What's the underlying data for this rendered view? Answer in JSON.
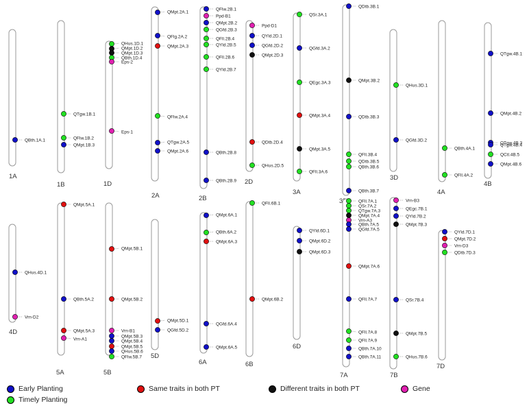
{
  "colors": {
    "early": "#1010c8",
    "timely": "#22e022",
    "same": "#e01010",
    "different": "#101010",
    "gene": "#e020b0"
  },
  "legend": [
    {
      "label": "Early Planting",
      "cat": "early"
    },
    {
      "label": "Timely Planting",
      "cat": "timely"
    },
    {
      "label": "Same traits in both PT",
      "cat": "same"
    },
    {
      "label": "Different traits in both PT",
      "cat": "different"
    },
    {
      "label": "Gene",
      "cat": "gene"
    }
  ],
  "chromosomes": [
    {
      "name": "1A",
      "markers": [
        {
          "label": "QBth.1A.1",
          "cat": "early"
        }
      ]
    },
    {
      "name": "1B",
      "markers": [
        {
          "label": "QTgw.1B.1",
          "cat": "timely"
        },
        {
          "label": "QFlw.1B.2",
          "cat": "timely"
        },
        {
          "label": "QMpt.1B.3",
          "cat": "early"
        }
      ]
    },
    {
      "name": "1D",
      "markers": [
        {
          "label": "QHus.1D.1",
          "cat": "timely"
        },
        {
          "label": "QMpt.1D.2",
          "cat": "different"
        },
        {
          "label": "QMpt.1D.3",
          "cat": "different"
        },
        {
          "label": "QBth.1D.4",
          "cat": "timely"
        },
        {
          "label": "Eps-2",
          "cat": "gene"
        },
        {
          "label": "Eps-1",
          "cat": "gene"
        }
      ]
    },
    {
      "name": "2A",
      "markers": [
        {
          "label": "QMpt.2A.1",
          "cat": "early"
        },
        {
          "label": "QFlg.2A.2",
          "cat": "early"
        },
        {
          "label": "QMpt.2A.3",
          "cat": "same"
        },
        {
          "label": "QFlw.2A.4",
          "cat": "timely"
        },
        {
          "label": "QTgw.2A.5",
          "cat": "early"
        },
        {
          "label": "QMpt.2A.6",
          "cat": "early"
        }
      ]
    },
    {
      "name": "2B",
      "markers": [
        {
          "label": "QFlw.2B.1",
          "cat": "early"
        },
        {
          "label": "Ppd-B1",
          "cat": "gene"
        },
        {
          "label": "QMpt.2B.2",
          "cat": "early"
        },
        {
          "label": "QGfd.2B.3",
          "cat": "timely"
        },
        {
          "label": "QFll.2B.4",
          "cat": "timely"
        },
        {
          "label": "QYld.2B.5",
          "cat": "timely"
        },
        {
          "label": "QFll.2B.6",
          "cat": "timely"
        },
        {
          "label": "QYld.2B.7",
          "cat": "timely"
        },
        {
          "label": "QBth.2B.8",
          "cat": "early"
        },
        {
          "label": "QBth.2B.9",
          "cat": "early"
        }
      ]
    },
    {
      "name": "2D",
      "markers": [
        {
          "label": "Ppd-D1",
          "cat": "gene"
        },
        {
          "label": "QYld.2D.1",
          "cat": "early"
        },
        {
          "label": "QGfd.2D.2",
          "cat": "early"
        },
        {
          "label": "QMpt.2D.3",
          "cat": "different"
        },
        {
          "label": "QDtb.2D.4",
          "cat": "same"
        },
        {
          "label": "QHus.2D.5",
          "cat": "timely"
        }
      ]
    },
    {
      "name": "3A",
      "markers": [
        {
          "label": "QSr.3A.1",
          "cat": "timely"
        },
        {
          "label": "QGfd.3A.2",
          "cat": "early"
        },
        {
          "label": "QEgc.3A.3",
          "cat": "timely"
        },
        {
          "label": "QMpt.3A.4",
          "cat": "same"
        },
        {
          "label": "QMpt.3A.5",
          "cat": "different"
        },
        {
          "label": "QFll.3A.6",
          "cat": "timely"
        }
      ]
    },
    {
      "name": "3B",
      "markers": [
        {
          "label": "QDtb.3B.1",
          "cat": "early"
        },
        {
          "label": "QMpt.3B.2",
          "cat": "different"
        },
        {
          "label": "QDtb.3B.3",
          "cat": "early"
        },
        {
          "label": "QFll.3B.4",
          "cat": "timely"
        },
        {
          "label": "QDtb.3B.5",
          "cat": "timely"
        },
        {
          "label": "QBth.3B.6",
          "cat": "timely"
        },
        {
          "label": "QBth.3B.7",
          "cat": "early"
        }
      ]
    },
    {
      "name": "3D",
      "markers": [
        {
          "label": "QHus.3D.1",
          "cat": "timely"
        },
        {
          "label": "QGfd.3D.2",
          "cat": "early"
        }
      ]
    },
    {
      "name": "4A",
      "markers": [
        {
          "label": "QBth.4A.1",
          "cat": "timely"
        },
        {
          "label": "QFll.4A.2",
          "cat": "timely"
        }
      ]
    },
    {
      "name": "4B",
      "markers": [
        {
          "label": "QTgw.4B.1",
          "cat": "early"
        },
        {
          "label": "QMpt.4B.2",
          "cat": "early"
        },
        {
          "label": "QTgw.4B.3",
          "cat": "early"
        },
        {
          "label": "QTgw.4B.4",
          "cat": "early"
        },
        {
          "label": "QCtl.4B.5",
          "cat": "timely"
        },
        {
          "label": "QMpt.4B.6",
          "cat": "early"
        }
      ]
    },
    {
      "name": "4D",
      "markers": [
        {
          "label": "QHus.4D.1",
          "cat": "early"
        },
        {
          "label": "Vrn-D2",
          "cat": "gene"
        }
      ]
    },
    {
      "name": "5A",
      "markers": [
        {
          "label": "QMpt.5A.1",
          "cat": "same"
        },
        {
          "label": "QBth.5A.2",
          "cat": "early"
        },
        {
          "label": "QMpt.5A.3",
          "cat": "same"
        },
        {
          "label": "Vrn-A1",
          "cat": "gene"
        }
      ]
    },
    {
      "name": "5B",
      "markers": [
        {
          "label": "QMpt.5B.1",
          "cat": "same"
        },
        {
          "label": "QMpt.5B.2",
          "cat": "same"
        },
        {
          "label": "Vrn-B1",
          "cat": "gene"
        },
        {
          "label": "QMpt.5B.3",
          "cat": "early"
        },
        {
          "label": "QMpt.5B.4",
          "cat": "early"
        },
        {
          "label": "QMpt.5B.5",
          "cat": "same"
        },
        {
          "label": "QHus.5B.6",
          "cat": "early"
        },
        {
          "label": "QFlw.5B.7",
          "cat": "timely"
        }
      ]
    },
    {
      "name": "5D",
      "markers": [
        {
          "label": "QMpt.5D.1",
          "cat": "same"
        },
        {
          "label": "QGfd.5D.2",
          "cat": "early"
        }
      ]
    },
    {
      "name": "6A",
      "markers": [
        {
          "label": "QMpt.6A.1",
          "cat": "early"
        },
        {
          "label": "QBth.6A.2",
          "cat": "timely"
        },
        {
          "label": "QMpt.6A.3",
          "cat": "same"
        },
        {
          "label": "QGfd.6A.4",
          "cat": "early"
        },
        {
          "label": "QMpt.6A.5",
          "cat": "early"
        }
      ]
    },
    {
      "name": "6B",
      "markers": [
        {
          "label": "QFll.6B.1",
          "cat": "timely"
        },
        {
          "label": "QMpt.6B.2",
          "cat": "same"
        }
      ]
    },
    {
      "name": "6D",
      "markers": [
        {
          "label": "QYld.6D.1",
          "cat": "early"
        },
        {
          "label": "QMpt.6D.2",
          "cat": "early"
        },
        {
          "label": "QMpt.6D.3",
          "cat": "different"
        }
      ]
    },
    {
      "name": "7A",
      "markers": [
        {
          "label": "QFll.7A.1",
          "cat": "timely"
        },
        {
          "label": "QSr.7A.2",
          "cat": "timely"
        },
        {
          "label": "QTgw.7A.3",
          "cat": "timely"
        },
        {
          "label": "QMpt.7A.4",
          "cat": "different"
        },
        {
          "label": "Vrn-A3",
          "cat": "gene"
        },
        {
          "label": "QBth.7A.5",
          "cat": "early"
        },
        {
          "label": "QGfd.7A.5",
          "cat": "early"
        },
        {
          "label": "QMpt.7A.6",
          "cat": "same"
        },
        {
          "label": "QFll.7A.7",
          "cat": "early"
        },
        {
          "label": "QFll.7A.8",
          "cat": "timely"
        },
        {
          "label": "QFll.7A.9",
          "cat": "timely"
        },
        {
          "label": "QBth.7A.10",
          "cat": "early"
        },
        {
          "label": "QBth.7A.11",
          "cat": "early"
        }
      ]
    },
    {
      "name": "7B",
      "markers": [
        {
          "label": "Vrn-B3",
          "cat": "gene"
        },
        {
          "label": "QEgc.7B.1",
          "cat": "early"
        },
        {
          "label": "QYld.7B.2",
          "cat": "early"
        },
        {
          "label": "QMpt.7B.3",
          "cat": "different"
        },
        {
          "label": "QSr.7B.4",
          "cat": "early"
        },
        {
          "label": "QMpt.7B.5",
          "cat": "different"
        },
        {
          "label": "QHus.7B.6",
          "cat": "timely"
        }
      ]
    },
    {
      "name": "7D",
      "markers": [
        {
          "label": "QYld.7D.1",
          "cat": "early"
        },
        {
          "label": "QMpt.7D.2",
          "cat": "same"
        },
        {
          "label": "Vrn-D3",
          "cat": "gene"
        },
        {
          "label": "QDtb.7D.3",
          "cat": "timely"
        }
      ]
    }
  ]
}
